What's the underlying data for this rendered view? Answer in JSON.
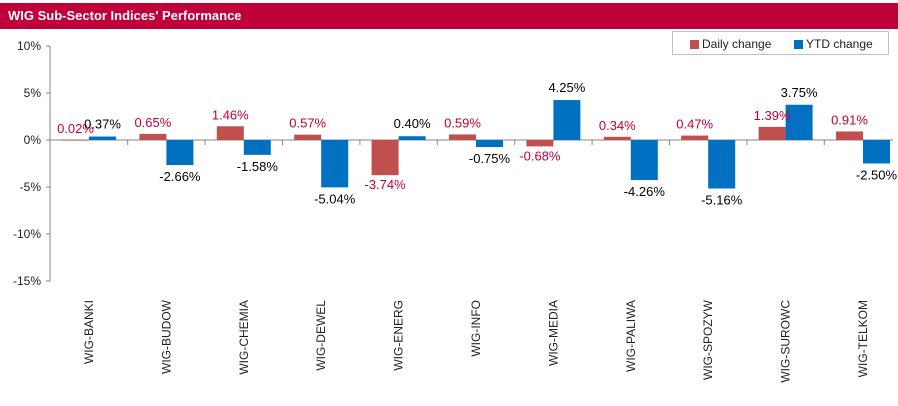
{
  "title": "WIG Sub-Sector Indices' Performance",
  "colors": {
    "daily": "#c0504d",
    "ytd": "#0070c0",
    "title_bar": "#c0003a",
    "daily_label": "#c0003a",
    "ytd_label": "#000000"
  },
  "chart_data": {
    "type": "bar",
    "title": "WIG Sub-Sector Indices' Performance",
    "xlabel": "",
    "ylabel": "",
    "ylim": [
      -15,
      10
    ],
    "yticks": [
      10,
      5,
      0,
      -5,
      -10,
      -15
    ],
    "ytick_labels": [
      "10%",
      "5%",
      "0%",
      "-5%",
      "-10%",
      "-15%"
    ],
    "grid": false,
    "legend_position": "top-right",
    "categories": [
      "WIG-BANKI",
      "WIG-BUDOW",
      "WIG-CHEMIA",
      "WIG-DEWEL",
      "WIG-ENERG",
      "WIG-INFO",
      "WIG-MEDIA",
      "WIG-PALIWA",
      "WIG-SPOZYW",
      "WIG-SUROWC",
      "WIG-TELKOM"
    ],
    "series": [
      {
        "name": "Daily change",
        "values": [
          0.02,
          0.65,
          1.46,
          0.57,
          -3.74,
          0.59,
          -0.68,
          0.34,
          0.47,
          1.39,
          0.91
        ],
        "labels": [
          "0.02%",
          "0.65%",
          "1.46%",
          "0.57%",
          "-3.74%",
          "0.59%",
          "-0.68%",
          "0.34%",
          "0.47%",
          "1.39%",
          "0.91%"
        ]
      },
      {
        "name": "YTD change",
        "values": [
          0.37,
          -2.66,
          -1.58,
          -5.04,
          0.4,
          -0.75,
          4.25,
          -4.26,
          -5.16,
          3.75,
          -2.5
        ],
        "labels": [
          "0.37%",
          "-2.66%",
          "-1.58%",
          "-5.04%",
          "0.40%",
          "-0.75%",
          "4.25%",
          "-4.26%",
          "-5.16%",
          "3.75%",
          "-2.50%"
        ]
      }
    ]
  }
}
